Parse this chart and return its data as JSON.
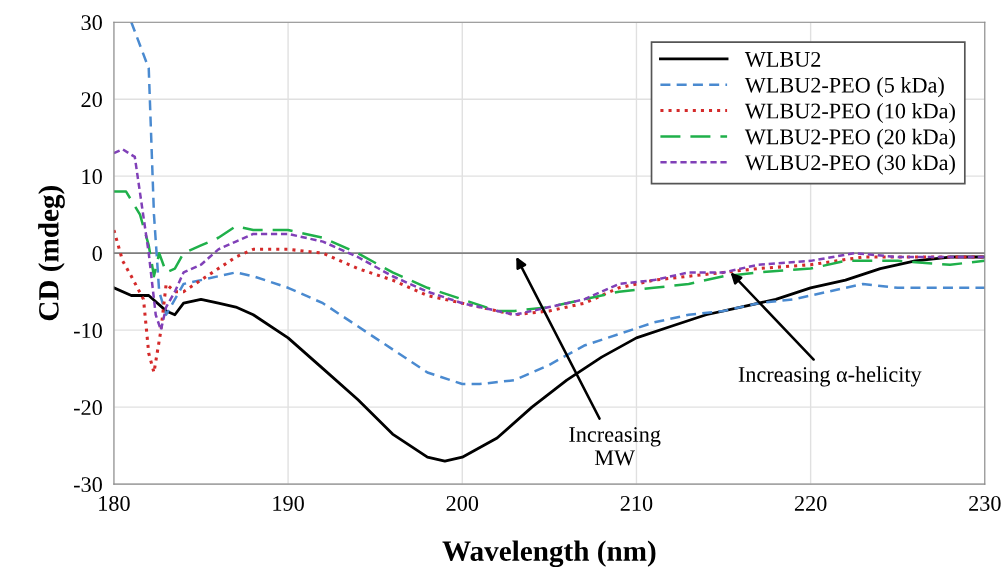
{
  "chart_data": {
    "type": "line",
    "xlabel": "Wavelength (nm)",
    "ylabel": "CD (mdeg)",
    "xlim": [
      180,
      230
    ],
    "xticks": [
      180,
      190,
      200,
      210,
      220,
      230
    ],
    "ylim": [
      -30,
      30
    ],
    "yticks": [
      -30,
      -20,
      -10,
      0,
      10,
      20,
      30
    ],
    "grid": true,
    "legend": "top right",
    "ref_lines": [
      {
        "axis": "y",
        "value": 0,
        "color": "#808080"
      }
    ],
    "annotations": [
      "Increasing\nMW",
      {
        "text": "Increasing α-helicity",
        "x": 215.4,
        "y": -2.5
      }
    ],
    "series": [
      {
        "name": "WLBU2",
        "color": "#000000",
        "line_style": "solid",
        "x": [
          180,
          181,
          182,
          183,
          183.5,
          184,
          185,
          186,
          187,
          188,
          190,
          192,
          194,
          196,
          198,
          199,
          200,
          202,
          204,
          206,
          208,
          210,
          212,
          214,
          216,
          218,
          220,
          222,
          224,
          226,
          228,
          230
        ],
        "values": [
          -4.5,
          -5.5,
          -5.5,
          -7.5,
          -8,
          -6.5,
          -6,
          -6.5,
          -7,
          -8,
          -11,
          -15,
          -19,
          -23.5,
          -26.5,
          -27,
          -26.5,
          -24,
          -20,
          -16.5,
          -13.5,
          -11,
          -9.5,
          -8,
          -7,
          -6,
          -4.5,
          -3.5,
          -2,
          -1,
          -0.5,
          -0.5
        ]
      },
      {
        "name": "WLBU2-PEO (5 kDa)",
        "color": "#4a8ad0",
        "line_style": "dashed",
        "x": [
          181,
          181.5,
          182,
          182.3,
          182.6,
          183,
          183.5,
          184,
          185,
          186,
          187,
          188,
          190,
          192,
          194,
          196,
          198,
          200,
          201,
          203,
          205,
          207,
          209,
          211,
          213,
          215,
          217,
          219,
          221,
          223,
          225,
          230
        ],
        "values": [
          30,
          27,
          24,
          5,
          -5,
          -8,
          -6,
          -4,
          -3.5,
          -3,
          -2.5,
          -3,
          -4.5,
          -6.5,
          -9.5,
          -12.5,
          -15.5,
          -17,
          -17,
          -16.5,
          -14.5,
          -12,
          -10.5,
          -9,
          -8,
          -7.5,
          -6.5,
          -6,
          -5,
          -4,
          -4.5,
          -4.5
        ]
      },
      {
        "name": "WLBU2-PEO (10 kDa)",
        "color": "#d42a2a",
        "line_style": "dotted",
        "x": [
          180,
          180.5,
          181,
          181.7,
          182,
          182.3,
          182.7,
          183,
          183.5,
          184,
          185,
          186,
          187,
          188,
          190,
          192,
          194,
          196,
          198,
          200,
          202,
          203,
          205,
          207,
          209,
          211,
          213,
          215,
          217,
          220,
          223,
          226,
          230
        ],
        "values": [
          3,
          -1,
          -3,
          -6,
          -13,
          -15.5,
          -10,
          -4,
          -5,
          -5,
          -3.5,
          -2,
          -0.5,
          0.5,
          0.5,
          0,
          -2,
          -3.5,
          -5.5,
          -6.5,
          -7.5,
          -8,
          -7.5,
          -6.5,
          -4.5,
          -3.5,
          -3,
          -2.5,
          -2,
          -1.5,
          -0.5,
          -0.5,
          -0.5
        ]
      },
      {
        "name": "WLBU2-PEO (20 kDa)",
        "color": "#1fb04a",
        "line_style": "dashed",
        "x": [
          180,
          180.7,
          181.5,
          182,
          182.3,
          182.6,
          183,
          183.5,
          184,
          185,
          186,
          187,
          188,
          190,
          192,
          194,
          196,
          198,
          200,
          202,
          203,
          205,
          207,
          209,
          211,
          213,
          215,
          217,
          220,
          222,
          225,
          228,
          230
        ],
        "values": [
          8,
          8,
          5,
          1,
          -3,
          0,
          -2.5,
          -2,
          0,
          1,
          2,
          3.5,
          3,
          3,
          2,
          0,
          -2.5,
          -4.5,
          -6,
          -7.5,
          -7.5,
          -7,
          -6,
          -5,
          -4.5,
          -4,
          -3,
          -2.5,
          -2,
          -1,
          -1,
          -1.5,
          -1
        ]
      },
      {
        "name": "WLBU2-PEO (30 kDa)",
        "color": "#8040b8",
        "line_style": "dashed",
        "x": [
          180,
          180.5,
          181.2,
          182,
          182.4,
          182.7,
          183,
          183.5,
          184,
          185,
          186,
          187,
          188,
          190,
          192,
          194,
          196,
          198,
          200,
          202,
          203,
          205,
          207,
          209,
          211,
          213,
          215,
          217,
          220,
          222.5,
          225,
          230
        ],
        "values": [
          13,
          13.5,
          12.5,
          0,
          -8,
          -10,
          -7,
          -5,
          -2.5,
          -1.5,
          0.5,
          1.5,
          2.5,
          2.5,
          1.5,
          -0.5,
          -3,
          -5,
          -6.5,
          -7.5,
          -8,
          -7,
          -6,
          -4,
          -3.5,
          -2.5,
          -2.5,
          -1.5,
          -1,
          0,
          -0.5,
          -0.5
        ]
      }
    ]
  }
}
